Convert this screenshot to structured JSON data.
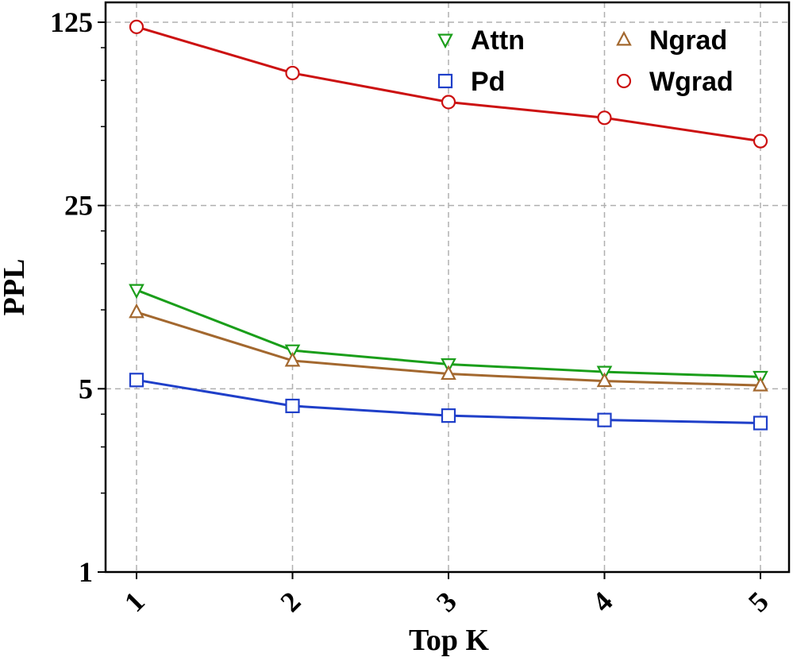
{
  "chart_data": {
    "type": "line",
    "xlabel": "Top K",
    "ylabel": "PPL",
    "x": [
      1,
      2,
      3,
      4,
      5
    ],
    "x_tick_labels": [
      "1",
      "2",
      "3",
      "4",
      "5"
    ],
    "y_scale": "log",
    "ylim": [
      1,
      125
    ],
    "y_major_ticks": [
      1,
      5,
      25,
      125
    ],
    "y_tick_labels": [
      "1",
      "5",
      "25",
      "125"
    ],
    "grid": true,
    "legend_placement": "top-right",
    "series": [
      {
        "name": "Attn",
        "color": "#1a9e1a",
        "marker": "triangle-down",
        "values": [
          11.9,
          7.0,
          6.2,
          5.8,
          5.55
        ]
      },
      {
        "name": "Pd",
        "color": "#1f3fc9",
        "marker": "square",
        "values": [
          5.4,
          4.3,
          3.95,
          3.8,
          3.7
        ]
      },
      {
        "name": "Ngrad",
        "color": "#a3682f",
        "marker": "triangle-up",
        "values": [
          9.8,
          6.4,
          5.7,
          5.35,
          5.15
        ]
      },
      {
        "name": "Wgrad",
        "color": "#cc1111",
        "marker": "circle",
        "values": [
          120,
          80,
          62,
          54,
          44
        ]
      }
    ],
    "legend_order": [
      "Attn",
      "Ngrad",
      "Pd",
      "Wgrad"
    ]
  }
}
